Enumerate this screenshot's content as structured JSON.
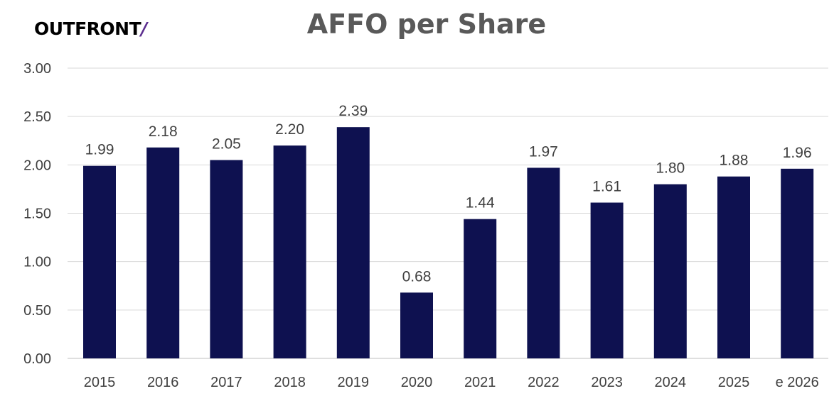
{
  "logo": {
    "text": "OUTFRONT",
    "mark": "/"
  },
  "chart_data": {
    "type": "bar",
    "title": "AFFO per Share",
    "categories": [
      "2015",
      "2016",
      "2017",
      "2018",
      "2019",
      "2020",
      "2021",
      "2022",
      "2023",
      "2024",
      "2025",
      "e 2026"
    ],
    "values": [
      1.99,
      2.18,
      2.05,
      2.2,
      2.39,
      0.68,
      1.44,
      1.97,
      1.61,
      1.8,
      1.88,
      1.96
    ],
    "value_labels": [
      "1.99",
      "2.18",
      "2.05",
      "2.20",
      "2.39",
      "0.68",
      "1.44",
      "1.97",
      "1.61",
      "1.80",
      "1.88",
      "1.96"
    ],
    "yticks": [
      "0.00",
      "0.50",
      "1.00",
      "1.50",
      "2.00",
      "2.50",
      "3.00"
    ],
    "ylim": [
      0,
      3
    ],
    "grid": true,
    "legend": "none",
    "bar_color": "#0e1150",
    "grid_color": "#d9d9d9"
  }
}
